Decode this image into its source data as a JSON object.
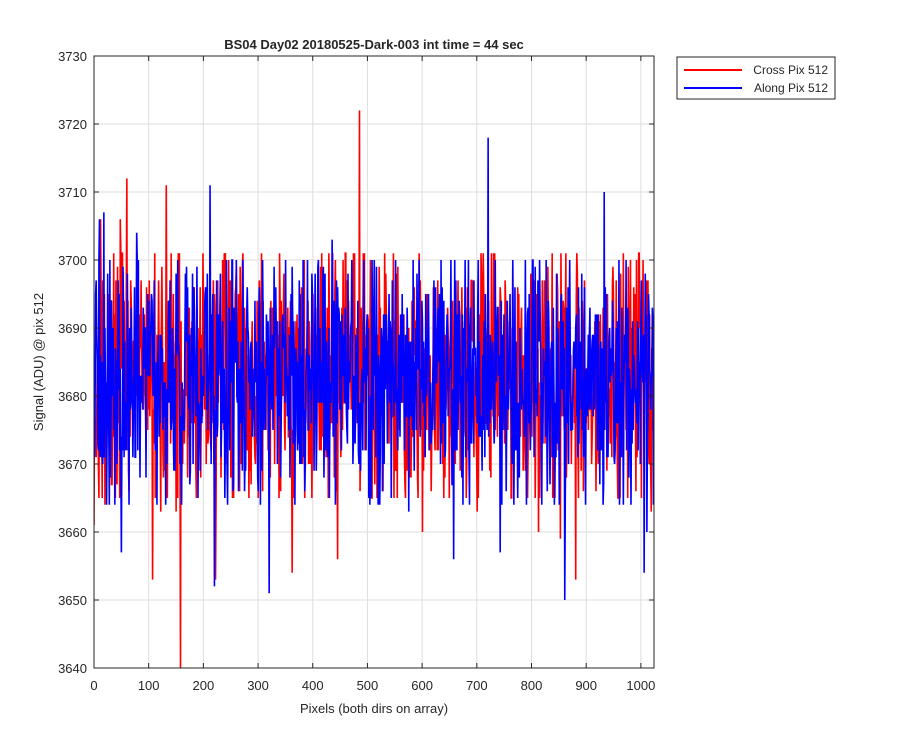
{
  "chart_data": {
    "type": "line",
    "title": "BS04 Day02 20180525-Dark-003 int time = 44 sec",
    "xlabel": "Pixels (both dirs on array)",
    "ylabel": "Signal (ADU) @ pix 512",
    "xlim": [
      0,
      1024
    ],
    "ylim": [
      3640,
      3730
    ],
    "xticks": [
      0,
      100,
      200,
      300,
      400,
      500,
      600,
      700,
      800,
      900,
      1000
    ],
    "yticks": [
      3640,
      3650,
      3660,
      3670,
      3680,
      3690,
      3700,
      3710,
      3720,
      3730
    ],
    "grid": true,
    "legend_position": "outside-top-right",
    "series": [
      {
        "name": "Cross Pix 512",
        "color": "#ff0000",
        "noise": {
          "n": 1024,
          "mean": 3683,
          "range": [
            3665,
            3701
          ],
          "seed": 17
        },
        "points": [
          [
            0,
            3661
          ],
          [
            2,
            3676
          ],
          [
            4,
            3671
          ],
          [
            6,
            3685
          ],
          [
            8,
            3670
          ],
          [
            10,
            3687
          ],
          [
            12,
            3706
          ],
          [
            20,
            3664
          ],
          [
            40,
            3697
          ],
          [
            48,
            3706
          ],
          [
            60,
            3712
          ],
          [
            64,
            3666
          ],
          [
            107,
            3653
          ],
          [
            122,
            3663
          ],
          [
            132,
            3711
          ],
          [
            140,
            3673
          ],
          [
            150,
            3663
          ],
          [
            158,
            3640
          ],
          [
            172,
            3679
          ],
          [
            200,
            3693
          ],
          [
            222,
            3653
          ],
          [
            235,
            3700
          ],
          [
            260,
            3699
          ],
          [
            300,
            3665
          ],
          [
            332,
            3693
          ],
          [
            362,
            3654
          ],
          [
            390,
            3693
          ],
          [
            445,
            3656
          ],
          [
            475,
            3690
          ],
          [
            485,
            3722
          ],
          [
            500,
            3692
          ],
          [
            550,
            3691
          ],
          [
            600,
            3660
          ],
          [
            662,
            3686
          ],
          [
            700,
            3663
          ],
          [
            752,
            3694
          ],
          [
            812,
            3660
          ],
          [
            830,
            3692
          ],
          [
            852,
            3659
          ],
          [
            880,
            3653
          ],
          [
            930,
            3693
          ],
          [
            1000,
            3665
          ],
          [
            1012,
            3697
          ],
          [
            1018,
            3663
          ],
          [
            1024,
            3683
          ]
        ]
      },
      {
        "name": "Along Pix 512",
        "color": "#0000ff",
        "noise": {
          "n": 1024,
          "mean": 3683,
          "range": [
            3664,
            3700
          ],
          "seed": 91
        },
        "points": [
          [
            0,
            3683
          ],
          [
            4,
            3697
          ],
          [
            10,
            3706
          ],
          [
            18,
            3707
          ],
          [
            35,
            3690
          ],
          [
            50,
            3657
          ],
          [
            78,
            3704
          ],
          [
            95,
            3668
          ],
          [
            115,
            3664
          ],
          [
            160,
            3664
          ],
          [
            175,
            3667
          ],
          [
            212,
            3711
          ],
          [
            220,
            3652
          ],
          [
            255,
            3667
          ],
          [
            300,
            3666
          ],
          [
            320,
            3651
          ],
          [
            380,
            3686
          ],
          [
            435,
            3703
          ],
          [
            470,
            3691
          ],
          [
            535,
            3684
          ],
          [
            575,
            3663
          ],
          [
            610,
            3690
          ],
          [
            657,
            3656
          ],
          [
            700,
            3676
          ],
          [
            720,
            3718
          ],
          [
            742,
            3657
          ],
          [
            760,
            3695
          ],
          [
            790,
            3664
          ],
          [
            822,
            3683
          ],
          [
            860,
            3650
          ],
          [
            890,
            3678
          ],
          [
            932,
            3710
          ],
          [
            960,
            3664
          ],
          [
            1000,
            3697
          ],
          [
            1005,
            3654
          ],
          [
            1010,
            3660
          ],
          [
            1024,
            3671
          ]
        ]
      }
    ]
  }
}
